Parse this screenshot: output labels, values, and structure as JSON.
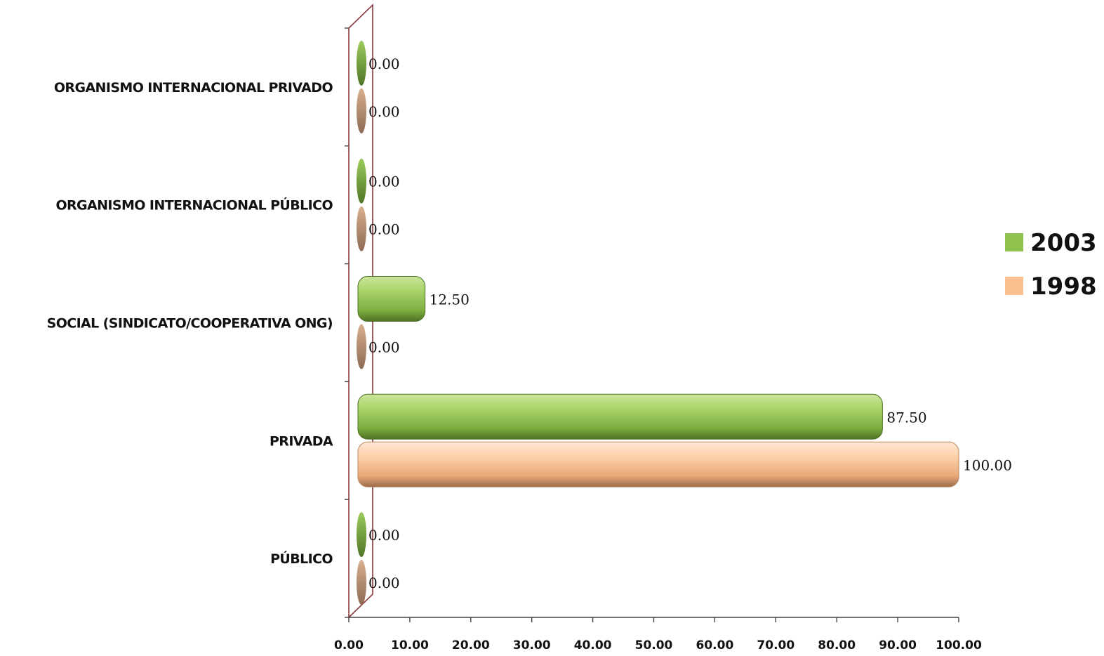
{
  "chart_data": {
    "type": "bar",
    "orientation": "horizontal",
    "title": "",
    "xlabel": "",
    "ylabel": "",
    "xlim": [
      0,
      100
    ],
    "x_ticks": [
      "0.00",
      "10.00",
      "20.00",
      "30.00",
      "40.00",
      "50.00",
      "60.00",
      "70.00",
      "80.00",
      "90.00",
      "100.00"
    ],
    "categories": [
      "ORGANISMO INTERNACIONAL PRIVADO",
      "ORGANISMO INTERNACIONAL PÚBLICO",
      "SOCIAL (SINDICATO/COOPERATIVA ONG)",
      "PRIVADA",
      "PÚBLICO"
    ],
    "series": [
      {
        "name": "2003",
        "color": "#8fc14f",
        "values": [
          0.0,
          0.0,
          12.5,
          87.5,
          0.0
        ],
        "labels": [
          "0.00",
          "0.00",
          "12.50",
          "87.50",
          "0.00"
        ]
      },
      {
        "name": "1998",
        "color": "#fac090",
        "values": [
          0.0,
          0.0,
          0.0,
          100.0,
          0.0
        ],
        "labels": [
          "0.00",
          "0.00",
          "0.00",
          "100.00",
          "0.00"
        ]
      }
    ],
    "legend": {
      "position": "right",
      "entries": [
        "2003",
        "1998"
      ]
    },
    "grid": false
  }
}
